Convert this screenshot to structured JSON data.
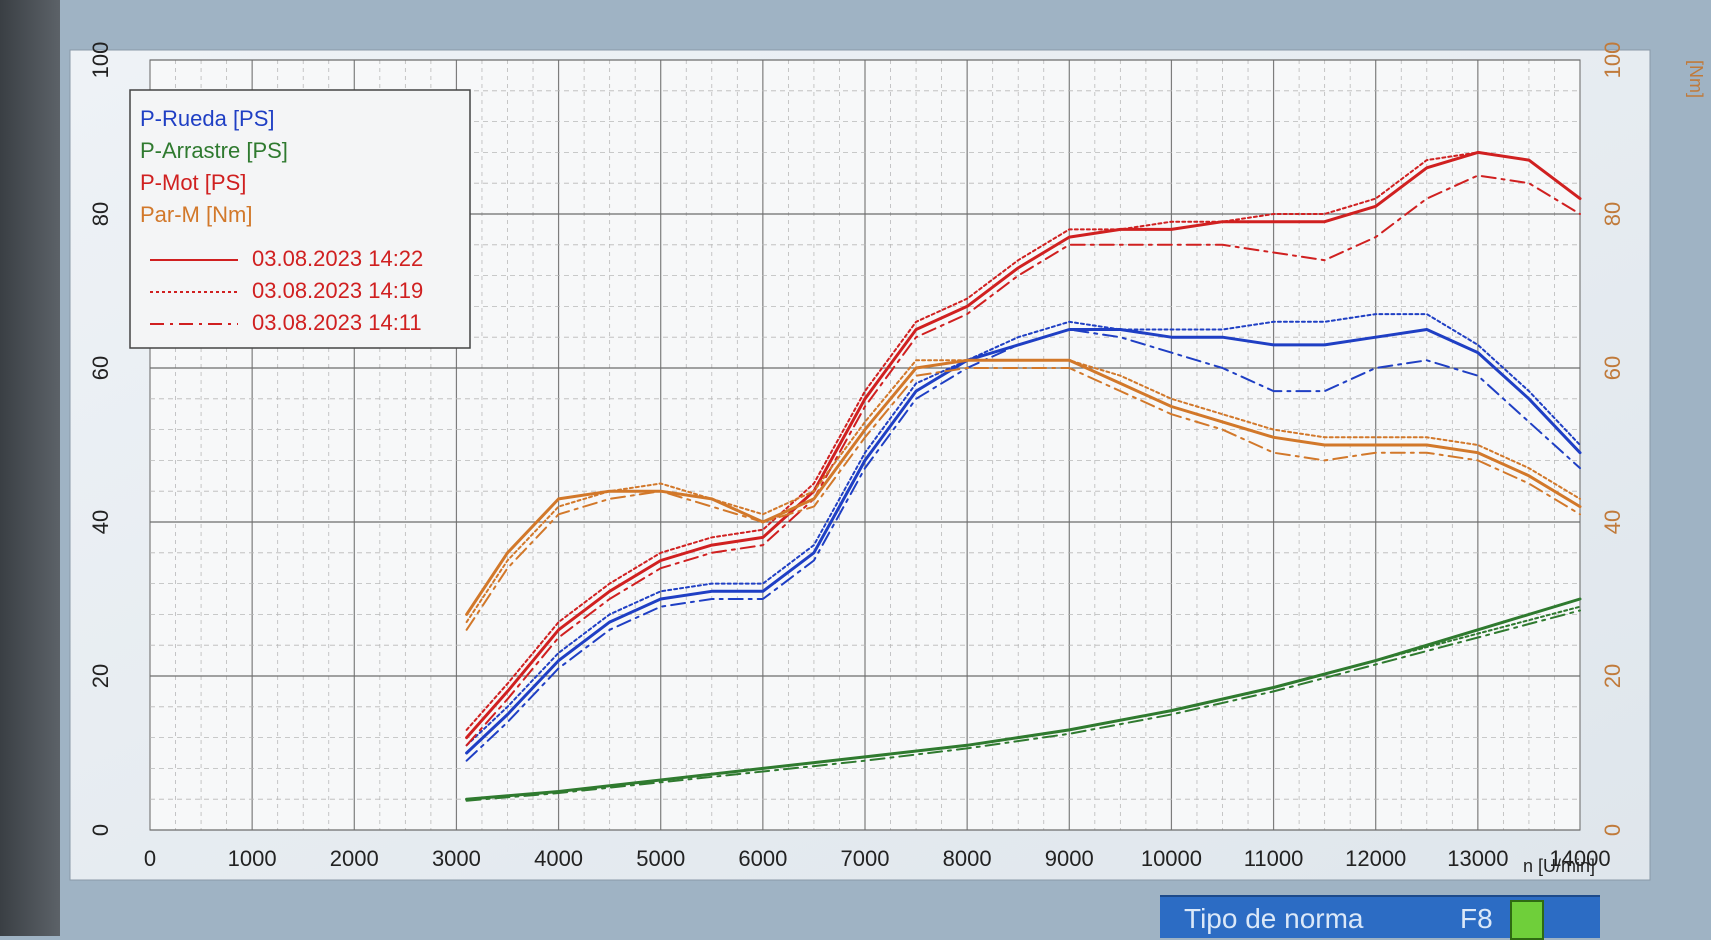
{
  "chart_data": {
    "type": "line",
    "xlabel": "n [U/min]",
    "xlim": [
      0,
      14000
    ],
    "xticks": [
      0,
      1000,
      2000,
      3000,
      4000,
      5000,
      6000,
      7000,
      8000,
      9000,
      10000,
      11000,
      12000,
      13000,
      14000
    ],
    "left_axis": {
      "ylim": [
        0,
        100
      ],
      "ticks": [
        0,
        20,
        40,
        60,
        80,
        100
      ]
    },
    "right_axis": {
      "unit": "[Nm]",
      "ylim": [
        0,
        100
      ],
      "ticks": [
        0,
        20,
        40,
        60,
        80,
        100
      ]
    },
    "grid": true,
    "legend": {
      "placement": "top-left",
      "channels": [
        {
          "label": "P-Rueda [PS]",
          "color": "#1f3fc4"
        },
        {
          "label": "P-Arrastre [PS]",
          "color": "#2f7a2f"
        },
        {
          "label": "P-Mot [PS]",
          "color": "#d02020"
        },
        {
          "label": "Par-M [Nm]",
          "color": "#d2782a"
        }
      ],
      "runs": [
        {
          "label": "03.08.2023 14:22",
          "style": "solid"
        },
        {
          "label": "03.08.2023 14:19",
          "style": "dotted"
        },
        {
          "label": "03.08.2023 14:11",
          "style": "dashdot"
        }
      ]
    },
    "series": [
      {
        "channel": "P-Rueda [PS]",
        "run": "03.08.2023 14:22",
        "x": [
          3100,
          3500,
          4000,
          4500,
          5000,
          5500,
          6000,
          6500,
          7000,
          7500,
          8000,
          8500,
          9000,
          9500,
          10000,
          10500,
          11000,
          11500,
          12000,
          12500,
          13000,
          13500,
          14000
        ],
        "y": [
          10,
          15,
          22,
          27,
          30,
          31,
          31,
          36,
          48,
          57,
          61,
          63,
          65,
          65,
          64,
          64,
          63,
          63,
          64,
          65,
          62,
          56,
          49
        ]
      },
      {
        "channel": "P-Rueda [PS]",
        "run": "03.08.2023 14:19",
        "x": [
          3100,
          3500,
          4000,
          4500,
          5000,
          5500,
          6000,
          6500,
          7000,
          7500,
          8000,
          8500,
          9000,
          9500,
          10000,
          10500,
          11000,
          11500,
          12000,
          12500,
          13000,
          13500,
          14000
        ],
        "y": [
          11,
          16,
          23,
          28,
          31,
          32,
          32,
          37,
          49,
          58,
          61,
          64,
          66,
          65,
          65,
          65,
          66,
          66,
          67,
          67,
          63,
          57,
          50
        ]
      },
      {
        "channel": "P-Rueda [PS]",
        "run": "03.08.2023 14:11",
        "x": [
          3100,
          3500,
          4000,
          4500,
          5000,
          5500,
          6000,
          6500,
          7000,
          7500,
          8000,
          8500,
          9000,
          9500,
          10000,
          10500,
          11000,
          11500,
          12000,
          12500,
          13000,
          13500,
          14000
        ],
        "y": [
          9,
          14,
          21,
          26,
          29,
          30,
          30,
          35,
          47,
          56,
          60,
          63,
          65,
          64,
          62,
          60,
          57,
          57,
          60,
          61,
          59,
          53,
          47
        ]
      },
      {
        "channel": "P-Arrastre [PS]",
        "run": "03.08.2023 14:22",
        "x": [
          3100,
          4000,
          5000,
          6000,
          7000,
          8000,
          9000,
          10000,
          11000,
          12000,
          13000,
          14000
        ],
        "y": [
          4,
          5,
          6.5,
          8,
          9.5,
          11,
          13,
          15.5,
          18.5,
          22,
          26,
          30
        ]
      },
      {
        "channel": "P-Arrastre [PS]",
        "run": "03.08.2023 14:19",
        "x": [
          3100,
          4000,
          5000,
          6000,
          7000,
          8000,
          9000,
          10000,
          11000,
          12000,
          13000,
          14000
        ],
        "y": [
          4,
          5,
          6.5,
          8,
          9.5,
          11,
          13,
          15.5,
          18.5,
          22,
          25.5,
          29
        ]
      },
      {
        "channel": "P-Arrastre [PS]",
        "run": "03.08.2023 14:11",
        "x": [
          3100,
          4000,
          5000,
          6000,
          7000,
          8000,
          9000,
          10000,
          11000,
          12000,
          13000,
          14000
        ],
        "y": [
          3.8,
          4.8,
          6.2,
          7.6,
          9,
          10.6,
          12.5,
          15,
          18,
          21.5,
          25,
          28.5
        ]
      },
      {
        "channel": "P-Mot [PS]",
        "run": "03.08.2023 14:22",
        "x": [
          3100,
          3500,
          4000,
          4500,
          5000,
          5500,
          6000,
          6500,
          7000,
          7500,
          8000,
          8500,
          9000,
          9500,
          10000,
          10500,
          11000,
          11500,
          12000,
          12500,
          13000,
          13500,
          14000
        ],
        "y": [
          12,
          18,
          26,
          31,
          35,
          37,
          38,
          44,
          56,
          65,
          68,
          73,
          77,
          78,
          78,
          79,
          79,
          79,
          81,
          86,
          88,
          87,
          82
        ]
      },
      {
        "channel": "P-Mot [PS]",
        "run": "03.08.2023 14:19",
        "x": [
          3100,
          3500,
          4000,
          4500,
          5000,
          5500,
          6000,
          6500,
          7000,
          7500,
          8000,
          8500,
          9000,
          9500,
          10000,
          10500,
          11000,
          11500,
          12000,
          12500,
          13000,
          13500,
          14000
        ],
        "y": [
          13,
          19,
          27,
          32,
          36,
          38,
          39,
          45,
          57,
          66,
          69,
          74,
          78,
          78,
          79,
          79,
          80,
          80,
          82,
          87,
          88,
          87,
          82
        ]
      },
      {
        "channel": "P-Mot [PS]",
        "run": "03.08.2023 14:11",
        "x": [
          3100,
          3500,
          4000,
          4500,
          5000,
          5500,
          6000,
          6500,
          7000,
          7500,
          8000,
          8500,
          9000,
          9500,
          10000,
          10500,
          11000,
          11500,
          12000,
          12500,
          13000,
          13500,
          14000
        ],
        "y": [
          11,
          17,
          25,
          30,
          34,
          36,
          37,
          43,
          55,
          64,
          67,
          72,
          76,
          76,
          76,
          76,
          75,
          74,
          77,
          82,
          85,
          84,
          80
        ]
      },
      {
        "channel": "Par-M [Nm]",
        "run": "03.08.2023 14:22",
        "x": [
          3100,
          3500,
          4000,
          4500,
          5000,
          5500,
          6000,
          6500,
          7000,
          7500,
          8000,
          8500,
          9000,
          9500,
          10000,
          10500,
          11000,
          11500,
          12000,
          12500,
          13000,
          13500,
          14000
        ],
        "y": [
          28,
          36,
          43,
          44,
          44,
          43,
          40,
          43,
          52,
          60,
          61,
          61,
          61,
          58,
          55,
          53,
          51,
          50,
          50,
          50,
          49,
          46,
          42
        ]
      },
      {
        "channel": "Par-M [Nm]",
        "run": "03.08.2023 14:19",
        "x": [
          3100,
          3500,
          4000,
          4500,
          5000,
          5500,
          6000,
          6500,
          7000,
          7500,
          8000,
          8500,
          9000,
          9500,
          10000,
          10500,
          11000,
          11500,
          12000,
          12500,
          13000,
          13500,
          14000
        ],
        "y": [
          27,
          35,
          42,
          44,
          45,
          43,
          41,
          44,
          53,
          61,
          61,
          61,
          61,
          59,
          56,
          54,
          52,
          51,
          51,
          51,
          50,
          47,
          43
        ]
      },
      {
        "channel": "Par-M [Nm]",
        "run": "03.08.2023 14:11",
        "x": [
          3100,
          3500,
          4000,
          4500,
          5000,
          5500,
          6000,
          6500,
          7000,
          7500,
          8000,
          8500,
          9000,
          9500,
          10000,
          10500,
          11000,
          11500,
          12000,
          12500,
          13000,
          13500,
          14000
        ],
        "y": [
          26,
          34,
          41,
          43,
          44,
          42,
          40,
          42,
          51,
          59,
          60,
          60,
          60,
          57,
          54,
          52,
          49,
          48,
          49,
          49,
          48,
          45,
          41
        ]
      }
    ]
  },
  "status_bar": {
    "label": "Tipo de norma",
    "key": "F8"
  }
}
